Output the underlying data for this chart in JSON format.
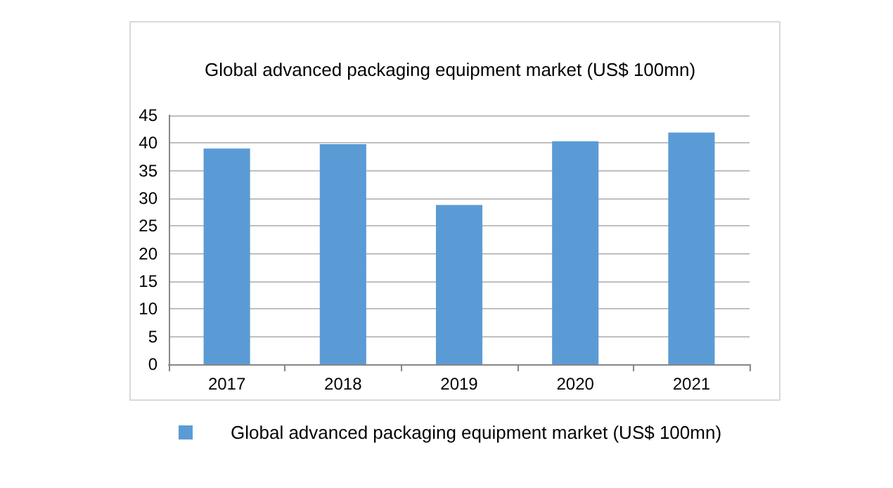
{
  "chart_data": {
    "type": "bar",
    "title": "Global advanced packaging equipment market (US$ 100mn)",
    "categories": [
      "2017",
      "2018",
      "2019",
      "2020",
      "2021"
    ],
    "series": [
      {
        "name": "Global advanced packaging equipment market (US$ 100mn)",
        "color": "#5b9bd5",
        "values": [
          39.0,
          39.8,
          28.8,
          40.3,
          41.9
        ]
      }
    ],
    "ylim": [
      0,
      45
    ],
    "yticks": [
      0,
      5,
      10,
      15,
      20,
      25,
      30,
      35,
      40,
      45
    ],
    "grid": "y",
    "legend": "bottom left"
  }
}
